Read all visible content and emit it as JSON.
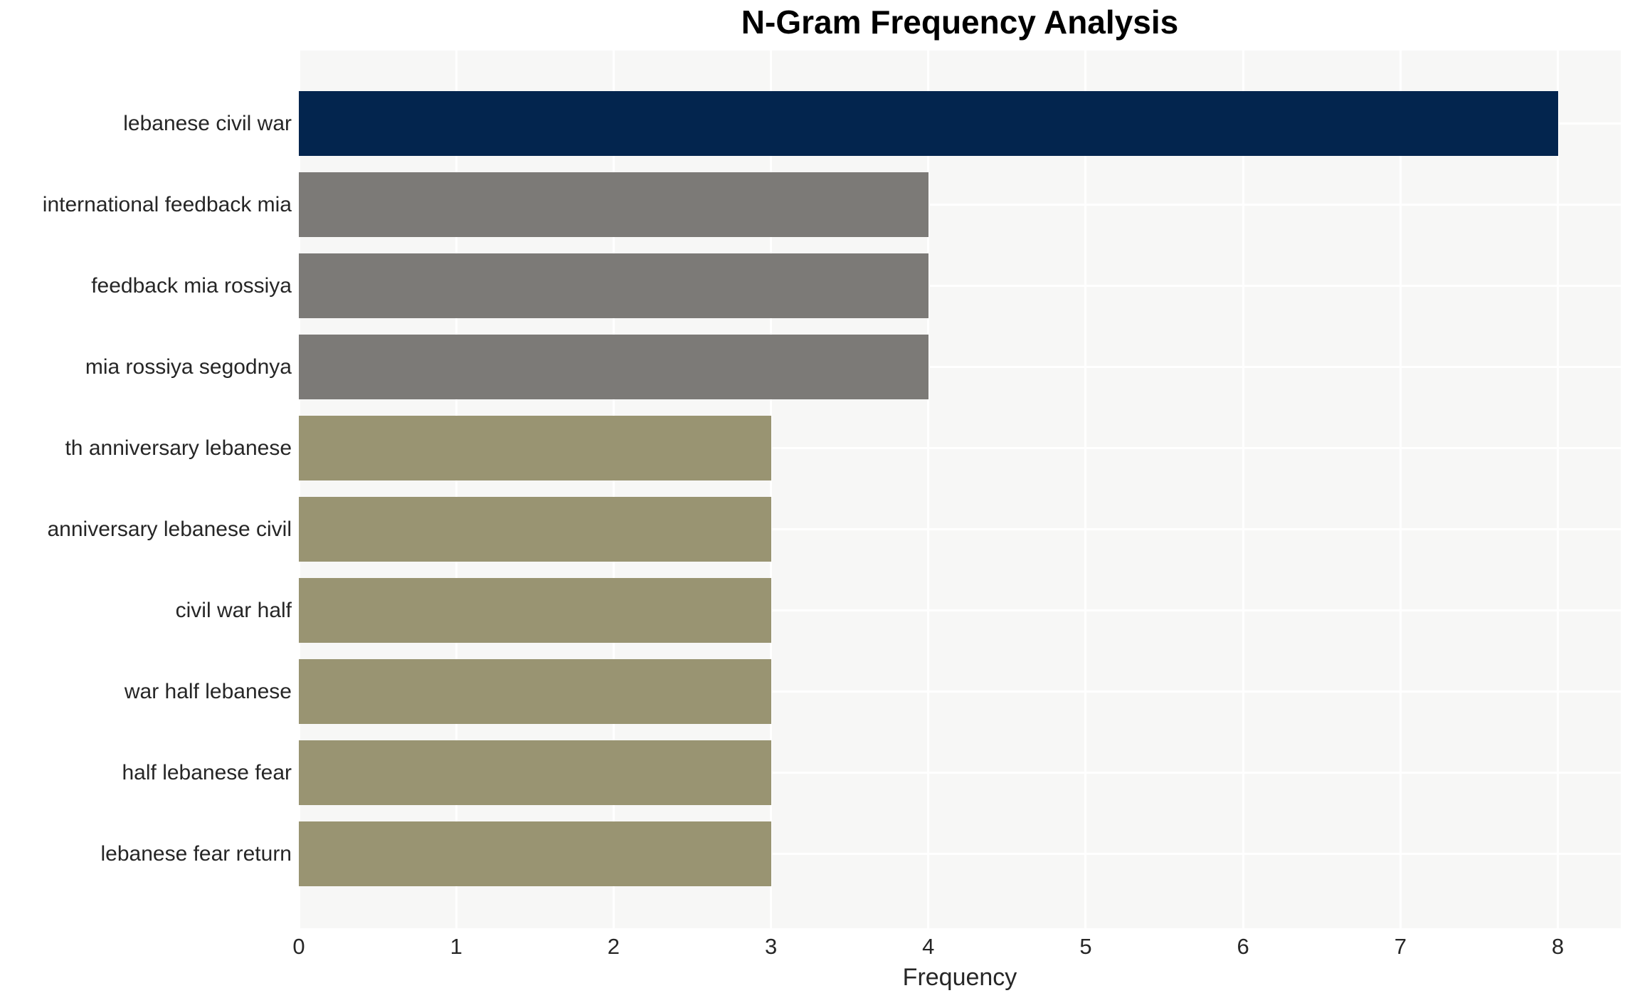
{
  "chart_data": {
    "type": "bar",
    "orientation": "horizontal",
    "title": "N-Gram Frequency Analysis",
    "xlabel": "Frequency",
    "ylabel": "",
    "categories": [
      "lebanese civil war",
      "international feedback mia",
      "feedback mia rossiya",
      "mia rossiya segodnya",
      "th anniversary lebanese",
      "anniversary lebanese civil",
      "civil war half",
      "war half lebanese",
      "half lebanese fear",
      "lebanese fear return"
    ],
    "values": [
      8,
      4,
      4,
      4,
      3,
      3,
      3,
      3,
      3,
      3
    ],
    "bar_colors": [
      "#03254e",
      "#7c7a77",
      "#7c7a77",
      "#7c7a77",
      "#999472",
      "#999472",
      "#999472",
      "#999472",
      "#999472",
      "#999472"
    ],
    "xticks": [
      0,
      1,
      2,
      3,
      4,
      5,
      6,
      7,
      8
    ],
    "xlim": [
      0,
      8.4
    ],
    "grid": true,
    "legend": "none",
    "style": {
      "page_bg": "#ffffff",
      "plot_bg": "#f7f7f6",
      "grid_color": "#ffffff",
      "text_color": "#262626",
      "title_color": "#000000"
    }
  }
}
